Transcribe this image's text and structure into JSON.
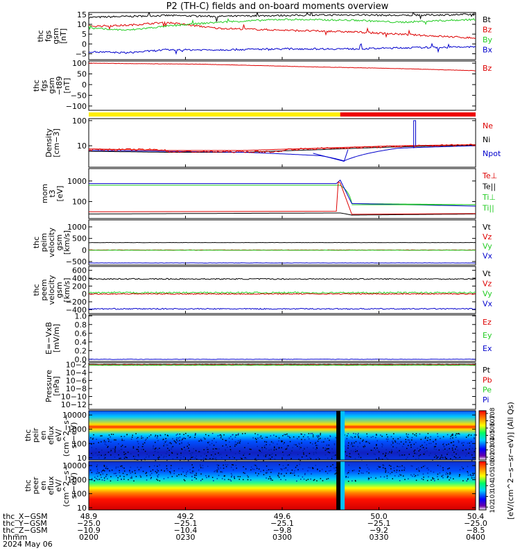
{
  "title": "P2 (TH-C) fields and on-board moments overview",
  "colors": {
    "black": "#000000",
    "red": "#dd0000",
    "green": "#22cc22",
    "blue": "#0000cc",
    "yellow": "#ffee00",
    "barred": "#ee0000"
  },
  "panels": [
    {
      "id": "fgs",
      "ylabel": [
        "thc",
        "fgs",
        "gsm",
        "[nT]"
      ],
      "ticks": [
        "15",
        "10",
        "5",
        "0",
        "−5"
      ],
      "tickvals": [
        15,
        10,
        5,
        0,
        -5
      ],
      "ylim": [
        -8,
        16
      ],
      "legend": [
        "Bt",
        "Bz",
        "By",
        "Bx"
      ],
      "legend_colors": [
        "#000000",
        "#dd0000",
        "#22cc22",
        "#0000cc"
      ]
    },
    {
      "id": "fgs-t89",
      "ylabel": [
        "thc",
        "fgs",
        "gsm",
        "−t89",
        "[nT]"
      ],
      "ticks": [
        "100",
        "50",
        "0",
        "−50",
        "−100"
      ],
      "tickvals": [
        100,
        50,
        0,
        -50,
        -100
      ],
      "ylim": [
        -120,
        110
      ],
      "legend": [
        "Bz"
      ],
      "legend_colors": [
        "#dd0000"
      ]
    },
    {
      "id": "density",
      "ylabel": [
        "Density",
        "[cm−3]"
      ],
      "ticks": [
        "100",
        "10"
      ],
      "tickvals": [
        100,
        10
      ],
      "ylim": [
        1.4,
        120
      ],
      "log": true,
      "legend": [
        "Ne",
        "Ni",
        "Npot"
      ],
      "legend_colors": [
        "#dd0000",
        "#000000",
        "#0000cc"
      ]
    },
    {
      "id": "temperature",
      "ylabel": [
        "mom",
        "t3",
        "[eV]"
      ],
      "ticks": [
        "1000",
        "100"
      ],
      "tickvals": [
        1000,
        100
      ],
      "ylim": [
        15,
        4000
      ],
      "log": true,
      "legend": [
        "Te⊥",
        "Te||",
        "Ti⊥",
        "Ti||"
      ],
      "legend_colors": [
        "#dd0000",
        "#000000",
        "#22cc22",
        "#22cc22"
      ]
    },
    {
      "id": "ion-velocity",
      "ylabel": [
        "thc",
        "peim",
        "velocity",
        "gsm",
        "[km/s]"
      ],
      "ticks": [
        "1000",
        "500",
        "0",
        "−500"
      ],
      "tickvals": [
        1000,
        500,
        0,
        -500
      ],
      "ylim": [
        -650,
        1300
      ],
      "legend": [
        "Vt",
        "Vz",
        "Vy",
        "Vx"
      ],
      "legend_colors": [
        "#000000",
        "#dd0000",
        "#22cc22",
        "#0000cc"
      ]
    },
    {
      "id": "electron-velocity",
      "ylabel": [
        "thc",
        "peem",
        "velocity",
        "gsm",
        "[km/s]"
      ],
      "ticks": [
        "600",
        "400",
        "200",
        "0",
        "−200",
        "−400"
      ],
      "tickvals": [
        600,
        400,
        200,
        0,
        -200,
        -400
      ],
      "ylim": [
        -500,
        700
      ],
      "legend": [
        "Vt",
        "Vz",
        "Vy",
        "Vx"
      ],
      "legend_colors": [
        "#000000",
        "#dd0000",
        "#22cc22",
        "#0000cc"
      ]
    },
    {
      "id": "efield",
      "ylabel": [
        "E=−VxB",
        "[mV/m]"
      ],
      "ticks": [
        "1.0",
        "0.8",
        "0.6",
        "0.4",
        "0.2",
        "0.0"
      ],
      "tickvals": [
        1.0,
        0.8,
        0.6,
        0.4,
        0.2,
        0.0
      ],
      "ylim": [
        -0.05,
        1.02
      ],
      "legend": [
        "Ez",
        "Ey",
        "Ex"
      ],
      "legend_colors": [
        "#dd0000",
        "#22cc22",
        "#0000cc"
      ]
    },
    {
      "id": "pressure",
      "ylabel": [
        "Pressure",
        "[nPa]"
      ],
      "ticks": [
        "10−2",
        "10−4",
        "10−6",
        "10−8",
        "10−10",
        "10−12"
      ],
      "tickvals": [
        -2,
        -4,
        -6,
        -8,
        -10,
        -12
      ],
      "ylim": [
        -13.2,
        -1.6
      ],
      "legend": [
        "Pt",
        "Pb",
        "Pe",
        "Pi"
      ],
      "legend_colors": [
        "#000000",
        "#dd0000",
        "#22cc22",
        "#0000cc"
      ]
    },
    {
      "id": "ion-spectrogram",
      "ylabel": [
        "thc",
        "peir",
        "en",
        "eflux",
        "eV/",
        "(cm^2−s−",
        "sr−eV)"
      ],
      "ticks": [
        "10000",
        "1000",
        "100",
        "10"
      ],
      "tickvals": [
        10000,
        1000,
        100,
        10
      ],
      "ylim": [
        7,
        20000
      ],
      "log": true
    },
    {
      "id": "electron-spectrogram",
      "ylabel": [
        "thc",
        "peer",
        "en",
        "eflux",
        "eV/",
        "(cm^2−s−",
        "sr−eV)"
      ],
      "ticks": [
        "10000",
        "1000",
        "100",
        "10"
      ],
      "tickvals": [
        10000,
        1000,
        100,
        10
      ],
      "ylim": [
        7,
        20000
      ],
      "log": true
    }
  ],
  "colorbar": {
    "label": "[eV/(cm^2−s−sr−eV)] (All Qs)",
    "ticks": [
      "108",
      "107",
      "106",
      "105",
      "104",
      "103",
      "102"
    ],
    "ticks2": [
      "106",
      "105",
      "104",
      "103",
      "102"
    ]
  },
  "xaxis": {
    "row_labels": [
      "thc_X−GSM",
      "thc_Y−GSM",
      "thc_Z−GSM",
      "hhmm",
      "2024 May 06"
    ],
    "columns": [
      [
        "48.9",
        "−25.0",
        "−10.9",
        "0200"
      ],
      [
        "49.2",
        "−25.1",
        "−10.4",
        "0230"
      ],
      [
        "49.6",
        "−25.1",
        "−9.8",
        "0300"
      ],
      [
        "50.0",
        "−25.1",
        "−9.2",
        "0330"
      ],
      [
        "50.4",
        "−25.0",
        "−8.5",
        "0400"
      ]
    ]
  },
  "chart_data": {
    "type": "line",
    "title": "P2 (TH-C) fields and on-board moments overview",
    "x_range": [
      "02:00",
      "04:00"
    ],
    "x_ticks": [
      "0200",
      "0230",
      "0300",
      "0330",
      "0400"
    ],
    "x_frac": [
      0,
      0.25,
      0.5,
      0.75,
      1.0
    ],
    "series": [
      {
        "panel": "fgs",
        "name": "Bt",
        "x": [
          0,
          0.1,
          0.2,
          0.33,
          0.5,
          0.7,
          0.8,
          1.0
        ],
        "values": [
          13.5,
          14,
          14.5,
          14,
          14.5,
          14.8,
          14.5,
          15
        ]
      },
      {
        "panel": "fgs",
        "name": "Bz",
        "x": [
          0,
          0.1,
          0.2,
          0.33,
          0.5,
          0.7,
          0.8,
          1.0
        ],
        "values": [
          9,
          9.5,
          11,
          8,
          7,
          6,
          5,
          3
        ]
      },
      {
        "panel": "fgs",
        "name": "By",
        "x": [
          0,
          0.1,
          0.2,
          0.33,
          0.5,
          0.7,
          0.8,
          1.0
        ],
        "values": [
          8,
          7,
          9,
          11,
          12.5,
          12,
          11,
          12.5
        ]
      },
      {
        "panel": "fgs",
        "name": "Bx",
        "x": [
          0,
          0.1,
          0.2,
          0.33,
          0.5,
          0.7,
          0.8,
          1.0
        ],
        "values": [
          -4,
          -4.5,
          -3,
          -3,
          -2.5,
          -2.5,
          -2,
          -1.5
        ]
      },
      {
        "panel": "fgs-t89",
        "name": "Bz",
        "x": [
          0,
          0.3,
          0.6,
          0.8,
          1.0
        ],
        "values": [
          100,
          95,
          82,
          75,
          65
        ]
      },
      {
        "panel": "density",
        "name": "Ne",
        "x": [
          0,
          0.2,
          0.4,
          0.6,
          0.8,
          1.0
        ],
        "values": [
          7.5,
          6.5,
          6.5,
          8,
          10,
          11
        ]
      },
      {
        "panel": "density",
        "name": "Ni",
        "x": [
          0,
          0.2,
          0.4,
          0.6,
          0.8,
          1.0
        ],
        "values": [
          6,
          5.5,
          5.5,
          7,
          9,
          10.5
        ]
      },
      {
        "panel": "density",
        "name": "Npot",
        "x": [
          0,
          0.2,
          0.4,
          0.6,
          0.66,
          0.8,
          1.0
        ],
        "values": [
          6.5,
          6,
          5.5,
          4,
          2.5,
          8,
          10
        ]
      },
      {
        "panel": "temperature",
        "name": "Ti||",
        "x": [
          0,
          0.65,
          0.68,
          1.0
        ],
        "values": [
          620,
          620,
          80,
          70
        ]
      },
      {
        "panel": "temperature",
        "name": "Te||",
        "x": [
          0,
          0.65,
          0.68,
          1.0
        ],
        "values": [
          25,
          28,
          22,
          25
        ]
      },
      {
        "panel": "ion-velocity",
        "name": "Vt",
        "x": [
          0,
          1.0
        ],
        "values": [
          320,
          320
        ]
      },
      {
        "panel": "electron-velocity",
        "name": "Vt",
        "x": [
          0,
          1.0
        ],
        "values": [
          380,
          380
        ]
      },
      {
        "panel": "electron-velocity",
        "name": "Vx",
        "x": [
          0,
          1.0
        ],
        "values": [
          -380,
          -380
        ]
      }
    ]
  }
}
